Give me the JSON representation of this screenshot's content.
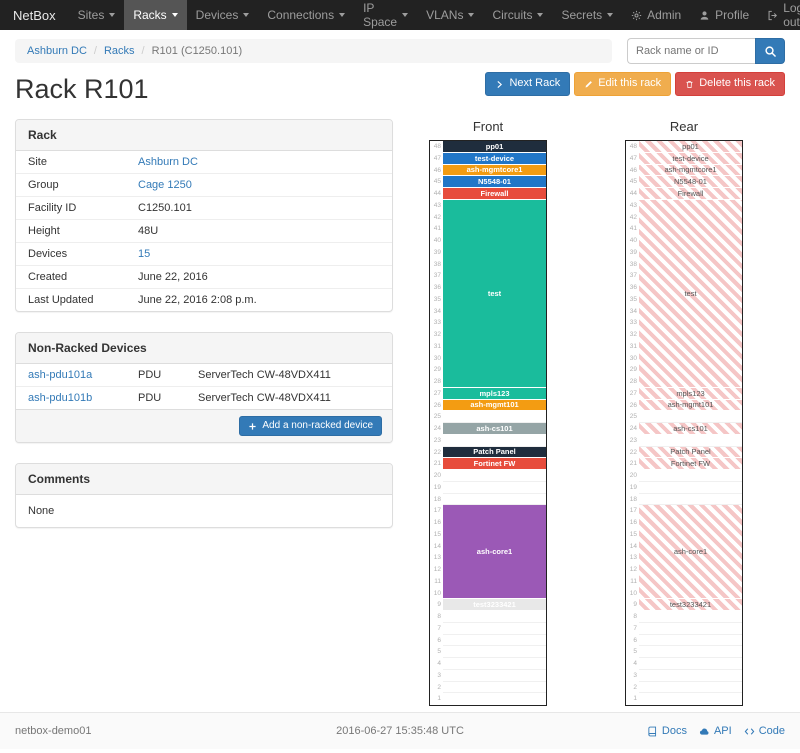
{
  "navbar": {
    "brand": "NetBox",
    "items": [
      {
        "label": "Sites",
        "active": false
      },
      {
        "label": "Racks",
        "active": true
      },
      {
        "label": "Devices",
        "active": false
      },
      {
        "label": "Connections",
        "active": false
      },
      {
        "label": "IP Space",
        "active": false
      },
      {
        "label": "VLANs",
        "active": false
      },
      {
        "label": "Circuits",
        "active": false
      },
      {
        "label": "Secrets",
        "active": false
      }
    ],
    "right_items": [
      {
        "label": "Admin",
        "icon": "gear-icon"
      },
      {
        "label": "Profile",
        "icon": "user-icon"
      },
      {
        "label": "Log out",
        "icon": "logout-icon"
      }
    ]
  },
  "breadcrumb": {
    "items": [
      {
        "label": "Ashburn DC",
        "link": true
      },
      {
        "label": "Racks",
        "link": true
      },
      {
        "label": "R101 (C1250.101)",
        "link": false
      }
    ]
  },
  "search": {
    "placeholder": "Rack name or ID"
  },
  "actions": {
    "next_label": "Next Rack",
    "edit_label": "Edit this rack",
    "delete_label": "Delete this rack"
  },
  "page_title": "Rack R101",
  "rack_panel": {
    "title": "Rack",
    "rows": [
      {
        "label": "Site",
        "value": "Ashburn DC",
        "link": true
      },
      {
        "label": "Group",
        "value": "Cage 1250",
        "link": true
      },
      {
        "label": "Facility ID",
        "value": "C1250.101",
        "link": false
      },
      {
        "label": "Height",
        "value": "48U",
        "link": false
      },
      {
        "label": "Devices",
        "value": "15",
        "link": true
      },
      {
        "label": "Created",
        "value": "June 22, 2016",
        "link": false
      },
      {
        "label": "Last Updated",
        "value": "June 22, 2016 2:08 p.m.",
        "link": false
      }
    ]
  },
  "nonracked_panel": {
    "title": "Non-Racked Devices",
    "rows": [
      {
        "name": "ash-pdu101a",
        "type": "PDU",
        "model": "ServerTech CW-48VDX411"
      },
      {
        "name": "ash-pdu101b",
        "type": "PDU",
        "model": "ServerTech CW-48VDX411"
      }
    ],
    "add_label": "Add a non-racked device"
  },
  "comments_panel": {
    "title": "Comments",
    "body": "None"
  },
  "elevations": {
    "front_title": "Front",
    "rear_title": "Rear",
    "height": 48,
    "rear_stripe": "#f5c6c6",
    "units": [
      {
        "u": 48,
        "h": 1,
        "label": "pp01",
        "color": "#1f2d3d"
      },
      {
        "u": 47,
        "h": 1,
        "label": "test-device",
        "color": "#2176c7"
      },
      {
        "u": 46,
        "h": 1,
        "label": "ash-mgmtcore1",
        "color": "#f39c12"
      },
      {
        "u": 45,
        "h": 1,
        "label": "N5548-01",
        "color": "#2176c7"
      },
      {
        "u": 44,
        "h": 1,
        "label": "Firewall",
        "color": "#e74c3c"
      },
      {
        "u": 43,
        "h": 16,
        "label": "test",
        "color": "#1abc9c"
      },
      {
        "u": 27,
        "h": 1,
        "label": "mpls123",
        "color": "#1abc9c"
      },
      {
        "u": 26,
        "h": 1,
        "label": "ash-mgmt101",
        "color": "#f39c12"
      },
      {
        "u": 24,
        "h": 1,
        "label": "ash-cs101",
        "color": "#95a5a6"
      },
      {
        "u": 22,
        "h": 1,
        "label": "Patch Panel",
        "color": "#1f2d3d"
      },
      {
        "u": 21,
        "h": 1,
        "label": "Fortinet FW",
        "color": "#e74c3c"
      },
      {
        "u": 17,
        "h": 8,
        "label": "ash-core1",
        "color": "#9b59b6"
      },
      {
        "u": 9,
        "h": 1,
        "label": "test3233421",
        "color": "#e8e8e8",
        "fg": "#ffffff"
      }
    ]
  },
  "footer": {
    "hostname": "netbox-demo01",
    "timestamp": "2016-06-27 15:35:48 UTC",
    "links": [
      {
        "label": "Docs",
        "icon": "book-icon"
      },
      {
        "label": "API",
        "icon": "cloud-icon"
      },
      {
        "label": "Code",
        "icon": "code-icon"
      }
    ]
  },
  "colors": {
    "accent": "#337ab7",
    "warning": "#f0ad4e",
    "danger": "#d9534f"
  }
}
